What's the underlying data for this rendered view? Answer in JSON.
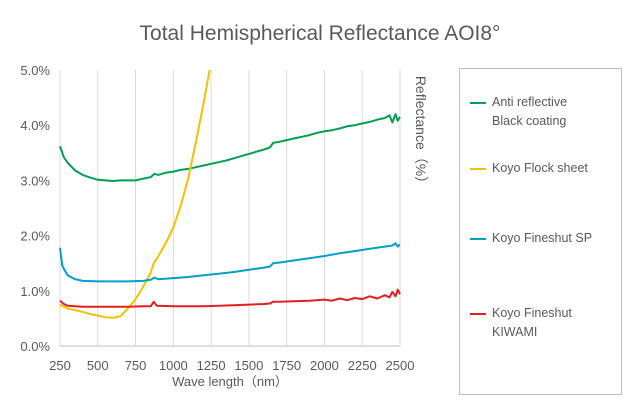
{
  "chart_data": {
    "type": "line",
    "title": "Total Hemispherical Reflectance AOI8°",
    "xlabel": "Wave length（nm）",
    "ylabel": "Reflectance（%）",
    "xlim": [
      250,
      2500
    ],
    "ylim": [
      0,
      5
    ],
    "x_ticks": [
      "250",
      "500",
      "750",
      "1000",
      "1250",
      "1500",
      "1750",
      "2000",
      "2250",
      "2500"
    ],
    "y_ticks": [
      "0.0%",
      "1.0%",
      "2.0%",
      "3.0%",
      "4.0%",
      "5.0%"
    ],
    "grid": "vertical",
    "legend_position": "right",
    "series": [
      {
        "name": "Anti reflective Black coating",
        "legend_lines": [
          "Anti reflective",
          "Black coating"
        ],
        "color": "#00a050",
        "points": [
          [
            250,
            3.62
          ],
          [
            275,
            3.42
          ],
          [
            300,
            3.32
          ],
          [
            350,
            3.18
          ],
          [
            400,
            3.1
          ],
          [
            450,
            3.05
          ],
          [
            500,
            3.01
          ],
          [
            550,
            3.0
          ],
          [
            600,
            2.99
          ],
          [
            650,
            3.0
          ],
          [
            700,
            3.0
          ],
          [
            750,
            3.0
          ],
          [
            800,
            3.03
          ],
          [
            850,
            3.06
          ],
          [
            875,
            3.12
          ],
          [
            900,
            3.1
          ],
          [
            950,
            3.14
          ],
          [
            1000,
            3.16
          ],
          [
            1050,
            3.19
          ],
          [
            1100,
            3.21
          ],
          [
            1150,
            3.24
          ],
          [
            1200,
            3.27
          ],
          [
            1250,
            3.3
          ],
          [
            1300,
            3.33
          ],
          [
            1350,
            3.36
          ],
          [
            1400,
            3.4
          ],
          [
            1450,
            3.44
          ],
          [
            1500,
            3.48
          ],
          [
            1550,
            3.52
          ],
          [
            1600,
            3.56
          ],
          [
            1640,
            3.6
          ],
          [
            1660,
            3.68
          ],
          [
            1700,
            3.7
          ],
          [
            1750,
            3.73
          ],
          [
            1800,
            3.76
          ],
          [
            1850,
            3.79
          ],
          [
            1900,
            3.82
          ],
          [
            1950,
            3.86
          ],
          [
            2000,
            3.89
          ],
          [
            2050,
            3.91
          ],
          [
            2100,
            3.94
          ],
          [
            2150,
            3.98
          ],
          [
            2200,
            4.0
          ],
          [
            2250,
            4.03
          ],
          [
            2300,
            4.06
          ],
          [
            2350,
            4.1
          ],
          [
            2400,
            4.13
          ],
          [
            2430,
            4.18
          ],
          [
            2450,
            4.05
          ],
          [
            2470,
            4.2
          ],
          [
            2485,
            4.08
          ],
          [
            2500,
            4.15
          ]
        ]
      },
      {
        "name": "Koyo Flock sheet",
        "legend_lines": [
          "Koyo Flock sheet"
        ],
        "color": "#f5c000",
        "points": [
          [
            250,
            0.75
          ],
          [
            300,
            0.68
          ],
          [
            350,
            0.65
          ],
          [
            400,
            0.62
          ],
          [
            450,
            0.58
          ],
          [
            500,
            0.55
          ],
          [
            550,
            0.52
          ],
          [
            600,
            0.51
          ],
          [
            650,
            0.54
          ],
          [
            700,
            0.68
          ],
          [
            750,
            0.85
          ],
          [
            800,
            1.07
          ],
          [
            850,
            1.33
          ],
          [
            870,
            1.5
          ],
          [
            890,
            1.58
          ],
          [
            920,
            1.72
          ],
          [
            960,
            1.92
          ],
          [
            1000,
            2.15
          ],
          [
            1050,
            2.55
          ],
          [
            1100,
            3.05
          ],
          [
            1150,
            3.7
          ],
          [
            1200,
            4.4
          ],
          [
            1240,
            5.0
          ]
        ]
      },
      {
        "name": "Koyo Fineshut SP",
        "legend_lines": [
          "Koyo Fineshut SP"
        ],
        "color": "#00a0c8",
        "points": [
          [
            250,
            1.78
          ],
          [
            265,
            1.45
          ],
          [
            300,
            1.28
          ],
          [
            350,
            1.21
          ],
          [
            400,
            1.18
          ],
          [
            500,
            1.17
          ],
          [
            600,
            1.17
          ],
          [
            700,
            1.17
          ],
          [
            800,
            1.18
          ],
          [
            850,
            1.2
          ],
          [
            875,
            1.24
          ],
          [
            900,
            1.21
          ],
          [
            1000,
            1.23
          ],
          [
            1100,
            1.25
          ],
          [
            1200,
            1.28
          ],
          [
            1300,
            1.31
          ],
          [
            1400,
            1.34
          ],
          [
            1500,
            1.38
          ],
          [
            1600,
            1.42
          ],
          [
            1640,
            1.44
          ],
          [
            1660,
            1.5
          ],
          [
            1700,
            1.51
          ],
          [
            1800,
            1.55
          ],
          [
            1900,
            1.59
          ],
          [
            2000,
            1.63
          ],
          [
            2100,
            1.68
          ],
          [
            2200,
            1.72
          ],
          [
            2300,
            1.76
          ],
          [
            2400,
            1.8
          ],
          [
            2450,
            1.82
          ],
          [
            2470,
            1.86
          ],
          [
            2485,
            1.8
          ],
          [
            2500,
            1.84
          ]
        ]
      },
      {
        "name": "Koyo Fineshut KIWAMI",
        "legend_lines": [
          "Koyo Fineshut",
          "KIWAMI"
        ],
        "color": "#e02020",
        "points": [
          [
            250,
            0.82
          ],
          [
            275,
            0.76
          ],
          [
            300,
            0.73
          ],
          [
            400,
            0.71
          ],
          [
            500,
            0.71
          ],
          [
            600,
            0.71
          ],
          [
            700,
            0.71
          ],
          [
            800,
            0.72
          ],
          [
            850,
            0.72
          ],
          [
            870,
            0.8
          ],
          [
            890,
            0.73
          ],
          [
            1000,
            0.72
          ],
          [
            1100,
            0.72
          ],
          [
            1200,
            0.72
          ],
          [
            1300,
            0.73
          ],
          [
            1400,
            0.74
          ],
          [
            1500,
            0.75
          ],
          [
            1600,
            0.76
          ],
          [
            1640,
            0.77
          ],
          [
            1660,
            0.8
          ],
          [
            1700,
            0.8
          ],
          [
            1800,
            0.81
          ],
          [
            1900,
            0.82
          ],
          [
            2000,
            0.84
          ],
          [
            2050,
            0.82
          ],
          [
            2100,
            0.86
          ],
          [
            2150,
            0.83
          ],
          [
            2200,
            0.87
          ],
          [
            2250,
            0.85
          ],
          [
            2300,
            0.9
          ],
          [
            2350,
            0.86
          ],
          [
            2400,
            0.92
          ],
          [
            2430,
            0.88
          ],
          [
            2450,
            0.98
          ],
          [
            2470,
            0.9
          ],
          [
            2485,
            1.02
          ],
          [
            2500,
            0.94
          ]
        ]
      }
    ]
  }
}
